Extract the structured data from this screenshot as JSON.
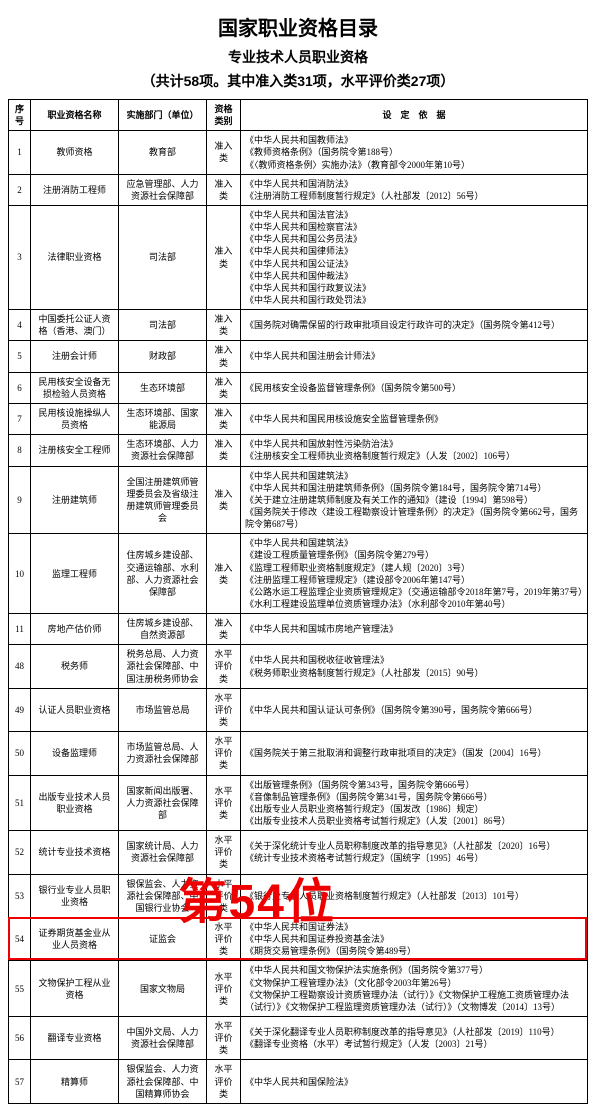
{
  "titles": {
    "t1": "国家职业资格目录",
    "t2": "专业技术人员职业资格",
    "t3": "（共计58项。其中准入类31项，水平评价类27项）"
  },
  "headers": {
    "no": "序号",
    "name": "职业资格名称",
    "dept": "实施部门（单位）",
    "cat": "资格类别",
    "basis": "设　定　依　据"
  },
  "overlay": {
    "text": "第54位"
  },
  "rows": [
    {
      "no": "1",
      "name": "教师资格",
      "dept": "教育部",
      "cat": "准入类",
      "basis": [
        "《中华人民共和国教师法》",
        "《教师资格条例》（国务院令第188号）",
        "《〈教师资格条例〉实施办法》（教育部令2000年第10号）"
      ]
    },
    {
      "no": "2",
      "name": "注册消防工程师",
      "dept": "应急管理部、人力资源社会保障部",
      "cat": "准入类",
      "basis": [
        "《中华人民共和国消防法》",
        "《注册消防工程师制度暂行规定》（人社部发〔2012〕56号）"
      ]
    },
    {
      "no": "3",
      "name": "法律职业资格",
      "dept": "司法部",
      "cat": "准入类",
      "basis": [
        "《中华人民共和国法官法》",
        "《中华人民共和国检察官法》",
        "《中华人民共和国公务员法》",
        "《中华人民共和国律师法》",
        "《中华人民共和国公证法》",
        "《中华人民共和国仲裁法》",
        "《中华人民共和国行政复议法》",
        "《中华人民共和国行政处罚法》"
      ]
    },
    {
      "no": "4",
      "name": "中国委托公证人资格（香港、澳门）",
      "dept": "司法部",
      "cat": "准入类",
      "basis": [
        "《国务院对确需保留的行政审批项目设定行政许可的决定》（国务院令第412号）"
      ]
    },
    {
      "no": "5",
      "name": "注册会计师",
      "dept": "财政部",
      "cat": "准入类",
      "basis": [
        "《中华人民共和国注册会计师法》"
      ]
    },
    {
      "no": "6",
      "name": "民用核安全设备无损检验人员资格",
      "dept": "生态环境部",
      "cat": "准入类",
      "basis": [
        "《民用核安全设备监督管理条例》（国务院令第500号）"
      ]
    },
    {
      "no": "7",
      "name": "民用核设施操纵人员资格",
      "dept": "生态环境部、国家能源局",
      "cat": "准入类",
      "basis": [
        "《中华人民共和国民用核设施安全监督管理条例》"
      ]
    },
    {
      "no": "8",
      "name": "注册核安全工程师",
      "dept": "生态环境部、人力资源社会保障部",
      "cat": "准入类",
      "basis": [
        "《中华人民共和国放射性污染防治法》",
        "《注册核安全工程师执业资格制度暂行规定》（人发〔2002〕106号）"
      ]
    },
    {
      "no": "9",
      "name": "注册建筑师",
      "dept": "全国注册建筑师管理委员会及省级注册建筑师管理委员会",
      "cat": "准入类",
      "basis": [
        "《中华人民共和国建筑法》",
        "《中华人民共和国注册建筑师条例》（国务院令第184号，国务院令第714号）",
        "《关于建立注册建筑师制度及有关工作的通知》（建设〔1994〕第598号）",
        "《国务院关于修改〈建设工程勘察设计管理条例〉的决定》（国务院令第662号，国务院令第687号）"
      ]
    },
    {
      "no": "10",
      "name": "监理工程师",
      "dept": "住房城乡建设部、交通运输部、水利部、人力资源社会保障部",
      "cat": "准入类",
      "basis": [
        "《中华人民共和国建筑法》",
        "《建设工程质量管理条例》（国务院令第279号）",
        "《监理工程师职业资格制度规定》（建人规〔2020〕3号）",
        "《注册监理工程师管理规定》（建设部令2006年第147号）",
        "《公路水运工程监理企业资质管理规定》（交通运输部令2018年第7号，2019年第37号）",
        "《水利工程建设监理单位资质管理办法》（水利部令2010年第40号）"
      ]
    },
    {
      "no": "11",
      "name": "房地产估价师",
      "dept": "住房城乡建设部、自然资源部",
      "cat": "准入类",
      "basis": [
        "《中华人民共和国城市房地产管理法》"
      ]
    },
    {
      "no": "48",
      "name": "税务师",
      "dept": "税务总局、人力资源社会保障部、中国注册税务师协会",
      "cat": "水平评价类",
      "basis": [
        "《中华人民共和国税收征收管理法》",
        "《税务师职业资格制度暂行规定》（人社部发〔2015〕90号）"
      ]
    },
    {
      "no": "49",
      "name": "认证人员职业资格",
      "dept": "市场监管总局",
      "cat": "水平评价类",
      "basis": [
        "《中华人民共和国认证认可条例》（国务院令第390号，国务院令第666号）"
      ]
    },
    {
      "no": "50",
      "name": "设备监理师",
      "dept": "市场监管总局、人力资源社会保障部",
      "cat": "水平评价类",
      "basis": [
        "《国务院关于第三批取消和调整行政审批项目的决定》（国发〔2004〕16号）"
      ]
    },
    {
      "no": "51",
      "name": "出版专业技术人员职业资格",
      "dept": "国家新闻出版署、人力资源社会保障部",
      "cat": "水平评价类",
      "basis": [
        "《出版管理条例》（国务院令第343号，国务院令第666号）",
        "《音像制品管理条例》（国务院令第341号，国务院令第666号）",
        "《出版专业人员职业资格暂行规定》（国发改〔1986〕规定）",
        "《出版专业技术人员职业资格考试暂行规定》（人发〔2001〕86号）"
      ]
    },
    {
      "no": "52",
      "name": "统计专业技术资格",
      "dept": "国家统计局、人力资源社会保障部",
      "cat": "水平评价类",
      "basis": [
        "《关于深化统计专业人员职称制度改革的指导意见》（人社部发〔2020〕16号）",
        "《统计专业技术资格考试暂行规定》（国统字〔1995〕46号）"
      ]
    },
    {
      "no": "53",
      "name": "银行业专业人员职业资格",
      "dept": "银保监会、人力资源社会保障部、中国银行业协会",
      "cat": "水平评价类",
      "basis": [
        "《银行业专业人员职业资格制度暂行规定》（人社部发〔2013〕101号）"
      ]
    },
    {
      "no": "54",
      "name": "证券期货基金业从业人员资格",
      "dept": "证监会",
      "cat": "水平评价类",
      "basis": [
        "《中华人民共和国证券法》",
        "《中华人民共和国证券投资基金法》",
        "《期货交易管理条例》（国务院令第489号）"
      ],
      "hl": true
    },
    {
      "no": "55",
      "name": "文物保护工程从业资格",
      "dept": "国家文物局",
      "cat": "水平评价类",
      "basis": [
        "《中华人民共和国文物保护法实施条例》（国务院令第377号）",
        "《文物保护工程管理办法》（文化部令2003年第26号）",
        "《文物保护工程勘察设计资质管理办法（试行）》《文物保护工程施工资质管理办法（试行）》《文物保护工程监理资质管理办法（试行）》（文物博发〔2014〕13号）"
      ]
    },
    {
      "no": "56",
      "name": "翻译专业资格",
      "dept": "中国外文局、人力资源社会保障部",
      "cat": "水平评价类",
      "basis": [
        "《关于深化翻译专业人员职称制度改革的指导意见》（人社部发〔2019〕110号）",
        "《翻译专业资格（水平）考试暂行规定》（人发〔2003〕21号）"
      ]
    },
    {
      "no": "57",
      "name": "精算师",
      "dept": "银保监会、人力资源社会保障部、中国精算师协会",
      "cat": "水平评价类",
      "basis": [
        "《中华人民共和国保险法》"
      ]
    }
  ]
}
